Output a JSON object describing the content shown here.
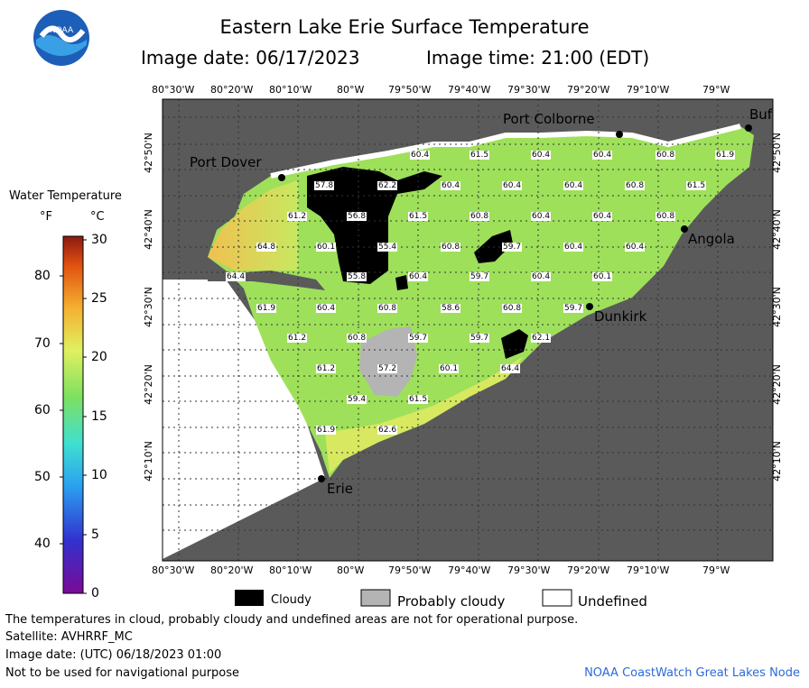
{
  "title": "Eastern Lake Erie Surface Temperature",
  "image_date_label": "Image date: 06/17/2023",
  "image_time_label": "Image time: 21:00 (EDT)",
  "logo_text": "NOAA",
  "legend": {
    "title": "Water Temperature",
    "unit_f": "°F",
    "unit_c": "°C",
    "f_ticks": [
      "80",
      "70",
      "60",
      "50",
      "40"
    ],
    "c_ticks": [
      "30",
      "25",
      "20",
      "15",
      "10",
      "5",
      "0"
    ]
  },
  "lon_labels": [
    "80°30'W",
    "80°20'W",
    "80°10'W",
    "80°W",
    "79°50'W",
    "79°40'W",
    "79°30'W",
    "79°20'W",
    "79°10'W",
    "79°W"
  ],
  "lat_labels": [
    "42°50'N",
    "42°40'N",
    "42°30'N",
    "42°20'N",
    "42°10'N"
  ],
  "cities": {
    "port_dover": "Port Dover",
    "port_colborne": "Port Colborne",
    "buffalo": "Buf",
    "angola": "Angola",
    "dunkirk": "Dunkirk",
    "erie": "Erie"
  },
  "temps": [
    "60.4",
    "61.5",
    "60.4",
    "60.4",
    "60.8",
    "61.9",
    "57.8",
    "62.2",
    "60.4",
    "60.4",
    "60.4",
    "60.8",
    "61.5",
    "61.2",
    "56.8",
    "61.5",
    "60.8",
    "60.4",
    "60.4",
    "60.8",
    "64.8",
    "60.1",
    "55.4",
    "60.8",
    "59.7",
    "60.4",
    "60.4",
    "64.4",
    "55.8",
    "60.4",
    "59.7",
    "60.4",
    "60.1",
    "61.9",
    "60.4",
    "60.8",
    "58.6",
    "60.8",
    "59.7",
    "61.2",
    "60.8",
    "59.7",
    "59.7",
    "62.1",
    "61.2",
    "57.2",
    "60.1",
    "64.4",
    "59.4",
    "61.5",
    "61.9",
    "62.6"
  ],
  "map_legend": {
    "cloudy": "Cloudy",
    "probably_cloudy": "Probably cloudy",
    "undefined": "Undefined"
  },
  "notes": {
    "disclaimer": "The temperatures in cloud, probably cloudy and undefined areas are not for operational purpose.",
    "satellite": "Satellite: AVHRRF_MC",
    "utc_date": "Image date: (UTC) 06/18/2023  01:00",
    "nav": "Not to be used for navigational purpose",
    "credit": "NOAA CoastWatch Great Lakes Node"
  },
  "colors": {
    "land": "#5a5a5a",
    "undefined": "#ffffff",
    "cloud": "#000000",
    "probably_cloudy": "#b4b4b4",
    "water_main": "#9ee05a",
    "water_warm": "#f0d860"
  }
}
